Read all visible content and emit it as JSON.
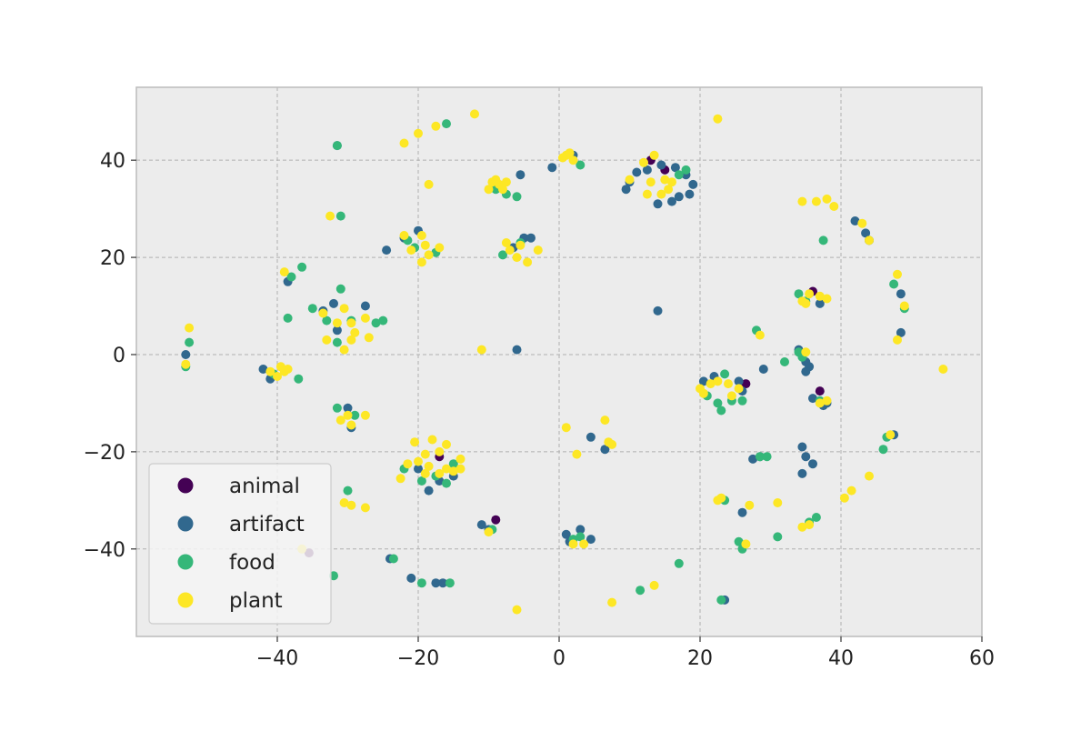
{
  "chart_data": {
    "type": "scatter",
    "title": "",
    "xlabel": "",
    "ylabel": "",
    "xlim": [
      -60,
      60
    ],
    "ylim": [
      -58,
      55
    ],
    "grid": true,
    "background": "#ececec",
    "legend_position": "lower-left",
    "x_ticks": [
      -40,
      -20,
      0,
      20,
      40,
      60
    ],
    "y_ticks": [
      -40,
      -20,
      0,
      20,
      40
    ],
    "x_tick_labels": [
      "−40",
      "−20",
      "0",
      "20",
      "40",
      "60"
    ],
    "y_tick_labels": [
      "−40",
      "−20",
      "0",
      "20",
      "40"
    ],
    "series": [
      {
        "name": "animal",
        "color": "#440154",
        "points": [
          [
            13.0,
            40.0
          ],
          [
            -9.0,
            -34.0
          ],
          [
            26.5,
            -6.0
          ],
          [
            37.0,
            -7.5
          ],
          [
            36.0,
            13.0
          ],
          [
            -17.0,
            -21.0
          ],
          [
            -35.5,
            -40.8
          ],
          [
            15.0,
            38.0
          ]
        ]
      },
      {
        "name": "artifact",
        "color": "#31688e",
        "points": [
          [
            -31.5,
            43.0
          ],
          [
            -1.0,
            38.5
          ],
          [
            2.0,
            41.0
          ],
          [
            9.5,
            34.0
          ],
          [
            10.0,
            35.5
          ],
          [
            14.0,
            31.0
          ],
          [
            16.0,
            31.5
          ],
          [
            17.0,
            32.5
          ],
          [
            18.5,
            33.0
          ],
          [
            19.0,
            35.0
          ],
          [
            11.0,
            37.5
          ],
          [
            12.5,
            38.0
          ],
          [
            14.5,
            39.0
          ],
          [
            16.5,
            38.5
          ],
          [
            18.0,
            37.0
          ],
          [
            -5.5,
            37.0
          ],
          [
            -24.5,
            21.5
          ],
          [
            -22.0,
            24.0
          ],
          [
            -20.0,
            25.5
          ],
          [
            -5.0,
            24.0
          ],
          [
            -4.0,
            24.0
          ],
          [
            -6.5,
            22.0
          ],
          [
            -38.5,
            15.0
          ],
          [
            -33.5,
            9.0
          ],
          [
            -32.0,
            10.5
          ],
          [
            -27.5,
            10.0
          ],
          [
            -31.5,
            5.0
          ],
          [
            14.0,
            9.0
          ],
          [
            -6.0,
            1.0
          ],
          [
            -53.0,
            0.0
          ],
          [
            -42.0,
            -3.0
          ],
          [
            -41.0,
            -5.0
          ],
          [
            20.5,
            -5.5
          ],
          [
            22.0,
            -4.5
          ],
          [
            25.5,
            -5.5
          ],
          [
            26.0,
            -7.5
          ],
          [
            34.0,
            1.0
          ],
          [
            35.0,
            -1.5
          ],
          [
            35.5,
            -2.5
          ],
          [
            35.0,
            -3.5
          ],
          [
            36.0,
            -9.0
          ],
          [
            -30.0,
            -11.0
          ],
          [
            -29.5,
            -15.0
          ],
          [
            4.5,
            -17.0
          ],
          [
            6.5,
            -19.5
          ],
          [
            -20.0,
            -23.5
          ],
          [
            -18.5,
            -28.0
          ],
          [
            -17.0,
            -26.0
          ],
          [
            -15.0,
            -25.0
          ],
          [
            27.5,
            -21.5
          ],
          [
            28.5,
            -21.0
          ],
          [
            34.5,
            -19.0
          ],
          [
            35.0,
            -21.0
          ],
          [
            36.0,
            -22.5
          ],
          [
            34.5,
            -24.5
          ],
          [
            26.0,
            -32.5
          ],
          [
            47.5,
            -16.5
          ],
          [
            42.0,
            27.5
          ],
          [
            43.5,
            25.0
          ],
          [
            44.0,
            23.5
          ],
          [
            48.5,
            12.5
          ],
          [
            48.5,
            4.5
          ],
          [
            37.0,
            10.5
          ],
          [
            -11.0,
            -35.0
          ],
          [
            -10.0,
            -36.0
          ],
          [
            1.0,
            -37.0
          ],
          [
            1.5,
            -38.5
          ],
          [
            3.0,
            -36.0
          ],
          [
            4.5,
            -38.0
          ],
          [
            -24.0,
            -42.0
          ],
          [
            -21.0,
            -46.0
          ],
          [
            -17.5,
            -47.0
          ],
          [
            -16.5,
            -47.0
          ],
          [
            23.5,
            -50.5
          ],
          [
            29.0,
            -3.0
          ],
          [
            37.5,
            -10.5
          ],
          [
            38.0,
            -10.0
          ]
        ]
      },
      {
        "name": "food",
        "color": "#35b779",
        "points": [
          [
            -31.5,
            43.0
          ],
          [
            -16.0,
            47.5
          ],
          [
            3.0,
            39.0
          ],
          [
            -9.0,
            34.0
          ],
          [
            -7.5,
            33.0
          ],
          [
            -6.0,
            32.5
          ],
          [
            17.0,
            37.0
          ],
          [
            18.0,
            38.0
          ],
          [
            -20.5,
            22.0
          ],
          [
            -17.5,
            21.0
          ],
          [
            -5.5,
            23.0
          ],
          [
            -8.0,
            20.5
          ],
          [
            -36.5,
            18.0
          ],
          [
            -38.0,
            16.0
          ],
          [
            -31.0,
            13.5
          ],
          [
            -35.0,
            9.5
          ],
          [
            -38.5,
            7.5
          ],
          [
            -29.5,
            7.0
          ],
          [
            -26.0,
            6.5
          ],
          [
            -25.0,
            7.0
          ],
          [
            -33.0,
            7.0
          ],
          [
            -31.5,
            2.5
          ],
          [
            -31.0,
            28.5
          ],
          [
            -53.0,
            -2.5
          ],
          [
            -52.5,
            2.5
          ],
          [
            -37.0,
            -5.0
          ],
          [
            -40.5,
            -4.0
          ],
          [
            23.5,
            -4.0
          ],
          [
            21.0,
            -8.5
          ],
          [
            22.5,
            -10.0
          ],
          [
            23.0,
            -11.5
          ],
          [
            24.5,
            -9.5
          ],
          [
            26.0,
            -9.5
          ],
          [
            32.0,
            -1.5
          ],
          [
            34.0,
            0.5
          ],
          [
            34.5,
            -0.5
          ],
          [
            28.0,
            5.0
          ],
          [
            37.5,
            23.5
          ],
          [
            34.0,
            12.5
          ],
          [
            35.0,
            11.0
          ],
          [
            -29.0,
            -12.5
          ],
          [
            -31.5,
            -11.0
          ],
          [
            -22.0,
            -23.5
          ],
          [
            -19.5,
            -26.0
          ],
          [
            -17.5,
            -25.0
          ],
          [
            -16.0,
            -26.5
          ],
          [
            -15.0,
            -22.5
          ],
          [
            28.5,
            -21.0
          ],
          [
            29.5,
            -21.0
          ],
          [
            46.5,
            -17.0
          ],
          [
            46.0,
            -19.5
          ],
          [
            23.5,
            -30.0
          ],
          [
            31.0,
            -37.5
          ],
          [
            35.5,
            -34.5
          ],
          [
            36.5,
            -33.5
          ],
          [
            25.5,
            -38.5
          ],
          [
            26.0,
            -40.0
          ],
          [
            17.0,
            -43.0
          ],
          [
            11.5,
            -48.5
          ],
          [
            2.0,
            -38.0
          ],
          [
            3.0,
            -37.5
          ],
          [
            -19.5,
            -47.0
          ],
          [
            -15.5,
            -47.0
          ],
          [
            -23.5,
            -42.0
          ],
          [
            -32.0,
            -45.5
          ],
          [
            47.5,
            14.5
          ],
          [
            49.0,
            9.5
          ],
          [
            37.0,
            -9.5
          ],
          [
            -9.5,
            -36.0
          ],
          [
            23.0,
            -50.5
          ],
          [
            -30.0,
            -28.0
          ],
          [
            -21.5,
            23.5
          ]
        ]
      },
      {
        "name": "plant",
        "color": "#fde725",
        "points": [
          [
            -12.0,
            49.5
          ],
          [
            -17.5,
            47.0
          ],
          [
            -20.0,
            45.5
          ],
          [
            -22.0,
            43.5
          ],
          [
            22.5,
            48.5
          ],
          [
            1.0,
            41.0
          ],
          [
            1.5,
            41.5
          ],
          [
            2.0,
            40.0
          ],
          [
            0.5,
            40.5
          ],
          [
            -9.5,
            35.5
          ],
          [
            -8.5,
            35.0
          ],
          [
            -8.0,
            34.0
          ],
          [
            -7.5,
            35.5
          ],
          [
            -10.0,
            34.0
          ],
          [
            -9.0,
            36.0
          ],
          [
            -18.5,
            35.0
          ],
          [
            13.5,
            41.0
          ],
          [
            12.0,
            39.5
          ],
          [
            13.0,
            35.5
          ],
          [
            15.0,
            36.0
          ],
          [
            16.0,
            35.5
          ],
          [
            15.5,
            34.0
          ],
          [
            12.5,
            33.0
          ],
          [
            14.5,
            33.0
          ],
          [
            10.0,
            36.0
          ],
          [
            -32.5,
            28.5
          ],
          [
            -22.0,
            24.5
          ],
          [
            -19.5,
            24.5
          ],
          [
            -19.0,
            22.5
          ],
          [
            -17.0,
            22.0
          ],
          [
            -21.0,
            21.5
          ],
          [
            -18.5,
            20.5
          ],
          [
            -19.5,
            19.0
          ],
          [
            -5.5,
            22.5
          ],
          [
            -7.0,
            21.5
          ],
          [
            -6.0,
            20.0
          ],
          [
            -3.0,
            21.5
          ],
          [
            -4.5,
            19.0
          ],
          [
            -7.5,
            23.0
          ],
          [
            -39.0,
            17.0
          ],
          [
            -33.5,
            8.5
          ],
          [
            -30.5,
            9.5
          ],
          [
            -29.5,
            6.5
          ],
          [
            -27.5,
            7.5
          ],
          [
            -31.5,
            6.5
          ],
          [
            -29.0,
            4.5
          ],
          [
            -33.0,
            3.0
          ],
          [
            -29.5,
            3.0
          ],
          [
            -27.0,
            3.5
          ],
          [
            -30.5,
            1.0
          ],
          [
            -11.0,
            1.0
          ],
          [
            -52.5,
            5.5
          ],
          [
            -41.0,
            -3.5
          ],
          [
            -40.0,
            -4.5
          ],
          [
            -39.0,
            -3.5
          ],
          [
            -38.5,
            -3.0
          ],
          [
            -39.5,
            -2.5
          ],
          [
            -53.0,
            -2.0
          ],
          [
            20.0,
            -7.0
          ],
          [
            21.5,
            -6.0
          ],
          [
            22.5,
            -5.5
          ],
          [
            24.0,
            -6.0
          ],
          [
            25.5,
            -7.0
          ],
          [
            24.5,
            -8.5
          ],
          [
            20.5,
            -8.0
          ],
          [
            35.0,
            0.5
          ],
          [
            28.5,
            4.0
          ],
          [
            34.5,
            11.0
          ],
          [
            35.5,
            12.5
          ],
          [
            37.0,
            12.0
          ],
          [
            38.0,
            11.5
          ],
          [
            35.0,
            10.5
          ],
          [
            38.0,
            -9.5
          ],
          [
            37.0,
            -10.0
          ],
          [
            34.5,
            31.5
          ],
          [
            36.5,
            31.5
          ],
          [
            38.0,
            32.0
          ],
          [
            39.0,
            30.5
          ],
          [
            43.0,
            27.0
          ],
          [
            44.0,
            23.5
          ],
          [
            48.0,
            16.5
          ],
          [
            49.0,
            10.0
          ],
          [
            48.0,
            3.0
          ],
          [
            54.5,
            -3.0
          ],
          [
            -30.0,
            -12.5
          ],
          [
            -31.0,
            -13.5
          ],
          [
            -27.5,
            -12.5
          ],
          [
            -29.5,
            -14.5
          ],
          [
            1.0,
            -15.0
          ],
          [
            6.5,
            -13.5
          ],
          [
            7.0,
            -18.0
          ],
          [
            7.5,
            -18.5
          ],
          [
            2.5,
            -20.5
          ],
          [
            -20.5,
            -18.0
          ],
          [
            -18.0,
            -17.5
          ],
          [
            -16.0,
            -18.5
          ],
          [
            -19.0,
            -20.5
          ],
          [
            -17.0,
            -20.0
          ],
          [
            -14.0,
            -21.5
          ],
          [
            -21.5,
            -22.5
          ],
          [
            -20.0,
            -22.0
          ],
          [
            -18.5,
            -23.0
          ],
          [
            -16.0,
            -23.5
          ],
          [
            -14.0,
            -23.5
          ],
          [
            -22.5,
            -25.5
          ],
          [
            -19.0,
            -24.5
          ],
          [
            -17.0,
            -24.5
          ],
          [
            -15.0,
            -24.0
          ],
          [
            -30.5,
            -30.5
          ],
          [
            -29.5,
            -31.0
          ],
          [
            -27.5,
            -31.5
          ],
          [
            -36.5,
            -40.0
          ],
          [
            -10.0,
            -36.5
          ],
          [
            -6.0,
            -52.5
          ],
          [
            7.5,
            -51.0
          ],
          [
            13.5,
            -47.5
          ],
          [
            2.0,
            -39.0
          ],
          [
            3.5,
            -39.0
          ],
          [
            22.5,
            -30.0
          ],
          [
            23.0,
            -29.5
          ],
          [
            27.0,
            -31.0
          ],
          [
            31.0,
            -30.5
          ],
          [
            26.5,
            -39.0
          ],
          [
            34.5,
            -35.5
          ],
          [
            35.5,
            -35.0
          ],
          [
            40.5,
            -29.5
          ],
          [
            41.5,
            -28.0
          ],
          [
            44.0,
            -25.0
          ],
          [
            47.0,
            -16.5
          ]
        ]
      }
    ]
  }
}
